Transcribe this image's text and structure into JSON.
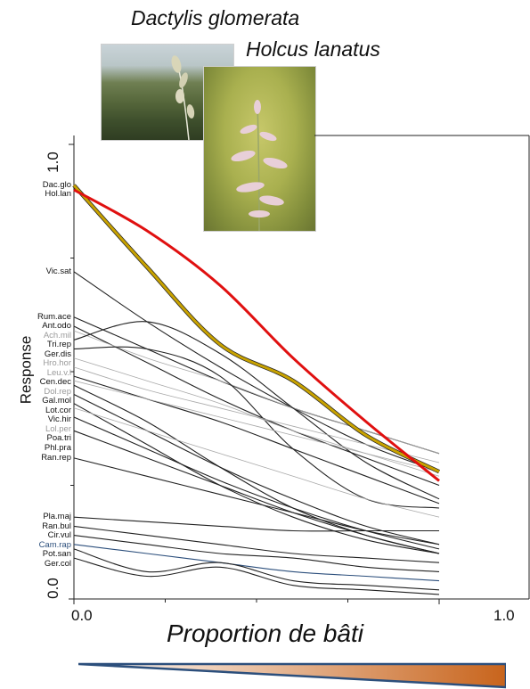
{
  "species_titles": [
    "Dactylis glomerata",
    "Holcus lanatus"
  ],
  "photos": [
    {
      "name": "Dactylis glomerata"
    },
    {
      "name": "Holcus lanatus"
    }
  ],
  "chart_data": {
    "type": "line",
    "xlabel": "Proportion de bâti",
    "ylabel": "Response",
    "xlim": [
      0.0,
      1.0
    ],
    "ylim": [
      0.0,
      1.0
    ],
    "x_tick_labels": [
      "0.0",
      "1.0"
    ],
    "y_tick_labels": [
      "0.0",
      "1.0"
    ],
    "grid": false,
    "x": [
      0.0,
      0.2,
      0.4,
      0.6,
      0.8,
      1.0
    ],
    "series": [
      {
        "name": "Dac.glo",
        "color": "#c8a200",
        "values": [
          0.91,
          0.73,
          0.56,
          0.48,
          0.36,
          0.28
        ]
      },
      {
        "name": "Hol.lan",
        "color": "#e01010",
        "values": [
          0.9,
          0.81,
          0.69,
          0.53,
          0.39,
          0.26
        ]
      },
      {
        "name": "Vic.sat",
        "color": "#222222",
        "values": [
          0.72,
          0.61,
          0.51,
          0.42,
          0.34,
          0.28
        ]
      },
      {
        "name": "Rum.ace",
        "color": "#222222",
        "values": [
          0.62,
          0.55,
          0.48,
          0.42,
          0.37,
          0.32
        ]
      },
      {
        "name": "Ant.odo",
        "color": "#222222",
        "values": [
          0.6,
          0.52,
          0.44,
          0.37,
          0.31,
          0.25
        ]
      },
      {
        "name": "Ach.mil",
        "color": "#aaaaaa",
        "values": [
          0.59,
          0.53,
          0.48,
          0.42,
          0.37,
          0.32
        ]
      },
      {
        "name": "Tri.rep",
        "color": "#222222",
        "values": [
          0.57,
          0.61,
          0.54,
          0.42,
          0.3,
          0.22
        ]
      },
      {
        "name": "Ger.dis",
        "color": "#222222",
        "values": [
          0.55,
          0.55,
          0.49,
          0.33,
          0.22,
          0.2
        ]
      },
      {
        "name": "Hro.hor",
        "color": "#aaaaaa",
        "values": [
          0.53,
          0.48,
          0.43,
          0.37,
          0.32,
          0.27
        ]
      },
      {
        "name": "Leu.v.l",
        "color": "#aaaaaa",
        "values": [
          0.51,
          0.46,
          0.42,
          0.38,
          0.34,
          0.3
        ]
      },
      {
        "name": "Cen.dec",
        "color": "#222222",
        "values": [
          0.49,
          0.44,
          0.39,
          0.33,
          0.27,
          0.21
        ]
      },
      {
        "name": "Dol.rep",
        "color": "#aaaaaa",
        "values": [
          0.48,
          0.44,
          0.4,
          0.36,
          0.32,
          0.28
        ]
      },
      {
        "name": "Gal.mol",
        "color": "#222222",
        "values": [
          0.47,
          0.39,
          0.29,
          0.2,
          0.14,
          0.1
        ]
      },
      {
        "name": "Lot.cor",
        "color": "#222222",
        "values": [
          0.45,
          0.37,
          0.29,
          0.22,
          0.16,
          0.12
        ]
      },
      {
        "name": "Vic.hir",
        "color": "#222222",
        "values": [
          0.43,
          0.34,
          0.25,
          0.18,
          0.13,
          0.1
        ]
      },
      {
        "name": "Lol.per",
        "color": "#aaaaaa",
        "values": [
          0.42,
          0.37,
          0.32,
          0.27,
          0.22,
          0.18
        ]
      },
      {
        "name": "Poa.tri",
        "color": "#222222",
        "values": [
          0.4,
          0.33,
          0.26,
          0.2,
          0.15,
          0.11
        ]
      },
      {
        "name": "Phl.pra",
        "color": "#222222",
        "values": [
          0.37,
          0.31,
          0.25,
          0.19,
          0.14,
          0.1
        ]
      },
      {
        "name": "Ran.rep",
        "color": "#222222",
        "values": [
          0.31,
          0.27,
          0.23,
          0.19,
          0.15,
          0.12
        ]
      },
      {
        "name": "Pla.maj",
        "color": "#222222",
        "values": [
          0.18,
          0.17,
          0.16,
          0.15,
          0.15,
          0.15
        ]
      },
      {
        "name": "Ran.bul",
        "color": "#222222",
        "values": [
          0.16,
          0.14,
          0.12,
          0.1,
          0.09,
          0.08
        ]
      },
      {
        "name": "Cir.vul",
        "color": "#222222",
        "values": [
          0.14,
          0.12,
          0.1,
          0.09,
          0.07,
          0.06
        ]
      },
      {
        "name": "Cam.rap",
        "color": "#2c4f7c",
        "values": [
          0.12,
          0.1,
          0.08,
          0.06,
          0.05,
          0.04
        ]
      },
      {
        "name": "Pot.san",
        "color": "#222222",
        "values": [
          0.11,
          0.06,
          0.08,
          0.04,
          0.03,
          0.02
        ]
      },
      {
        "name": "Ger.col",
        "color": "#222222",
        "values": [
          0.09,
          0.05,
          0.07,
          0.03,
          0.02,
          0.01
        ]
      }
    ],
    "label_colors": {
      "Ach.mil": "#9a9a9a",
      "Hro.hor": "#9a9a9a",
      "Leu.v.l": "#9a9a9a",
      "Dol.rep": "#9a9a9a",
      "Lol.per": "#9a9a9a",
      "Cam.rap": "#2c4f7c"
    },
    "gradient": {
      "from": "#ffffff",
      "to": "#c8641c",
      "border": "#2c4f7c"
    }
  }
}
